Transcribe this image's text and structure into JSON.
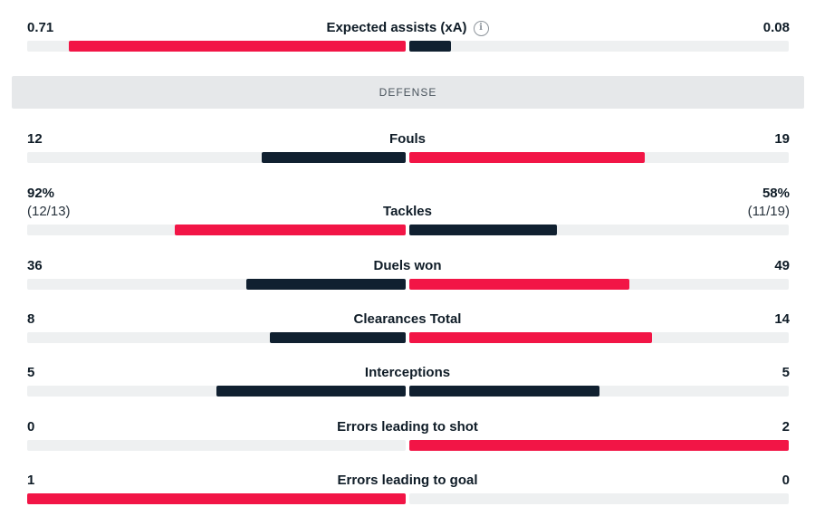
{
  "colors": {
    "home": "#f21546",
    "away": "#102030",
    "track": "#eef0f1"
  },
  "section_title": "DEFENSE",
  "stats": [
    {
      "name": "Expected assists (xA)",
      "home": "0.71",
      "away": "0.08",
      "home_frac": 0.89,
      "away_frac": 0.11,
      "home_color": "home",
      "away_color": "away",
      "info_icon": "info-icon"
    },
    {
      "name": "Fouls",
      "home": "12",
      "away": "19",
      "home_frac": 0.38,
      "away_frac": 0.62,
      "home_color": "away",
      "away_color": "home"
    },
    {
      "name": "Tackles",
      "home": "92%",
      "away": "58%",
      "home_sub": "(12/13)",
      "away_sub": "(11/19)",
      "home_frac": 0.61,
      "away_frac": 0.39,
      "home_color": "home",
      "away_color": "away"
    },
    {
      "name": "Duels won",
      "home": "36",
      "away": "49",
      "home_frac": 0.42,
      "away_frac": 0.58,
      "home_color": "away",
      "away_color": "home"
    },
    {
      "name": "Clearances Total",
      "home": "8",
      "away": "14",
      "home_frac": 0.36,
      "away_frac": 0.64,
      "home_color": "away",
      "away_color": "home"
    },
    {
      "name": "Interceptions",
      "home": "5",
      "away": "5",
      "home_frac": 0.5,
      "away_frac": 0.5,
      "home_color": "away",
      "away_color": "away"
    },
    {
      "name": "Errors leading to shot",
      "home": "0",
      "away": "2",
      "home_frac": 0.0,
      "away_frac": 1.0,
      "home_color": "away",
      "away_color": "home"
    },
    {
      "name": "Errors leading to goal",
      "home": "1",
      "away": "0",
      "home_frac": 1.0,
      "away_frac": 0.0,
      "home_color": "home",
      "away_color": "away"
    }
  ]
}
